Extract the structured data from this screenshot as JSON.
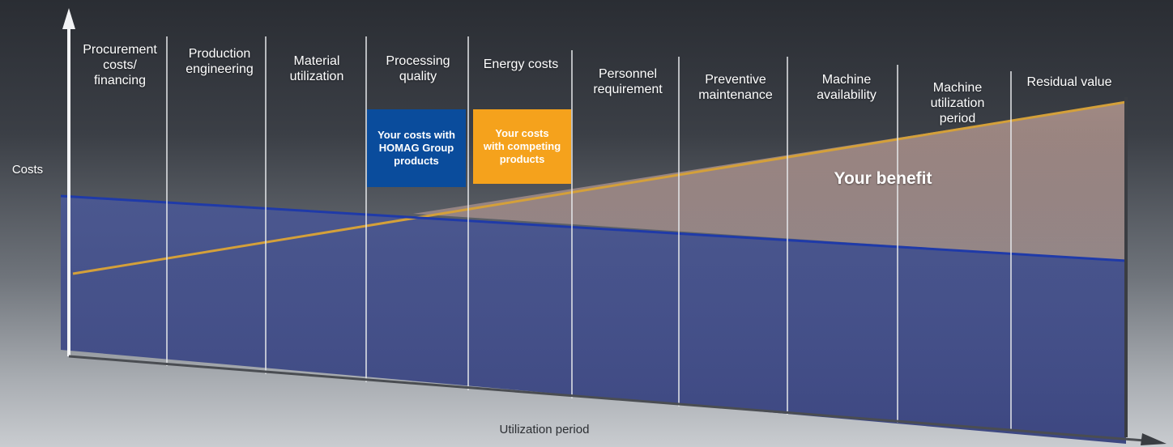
{
  "stages": [
    "Procurement\ncosts/\nfinancing",
    "Production\nengineering",
    "Material\nutilization",
    "Processing\nquality",
    "Energy costs",
    "Personnel\nrequirement",
    "Preventive\nmaintenance",
    "Machine\navailability",
    "Machine\nutilization\nperiod",
    "Residual value"
  ],
  "legend": {
    "homag": {
      "label": "Your costs with\nHOMAG Group\nproducts",
      "color": "#0a4c9c"
    },
    "competing": {
      "label": "Your costs\nwith competing\nproducts",
      "color": "#f5a21c"
    }
  },
  "benefit_label": "Your benefit",
  "y_axis_label": "Costs",
  "x_axis_label": "Utilization period",
  "colors": {
    "homag_area": "#3d4a8a",
    "homag_line": "#1f3aa8",
    "competing_line": "#d4a03a",
    "benefit_area": "#c9a898"
  }
}
